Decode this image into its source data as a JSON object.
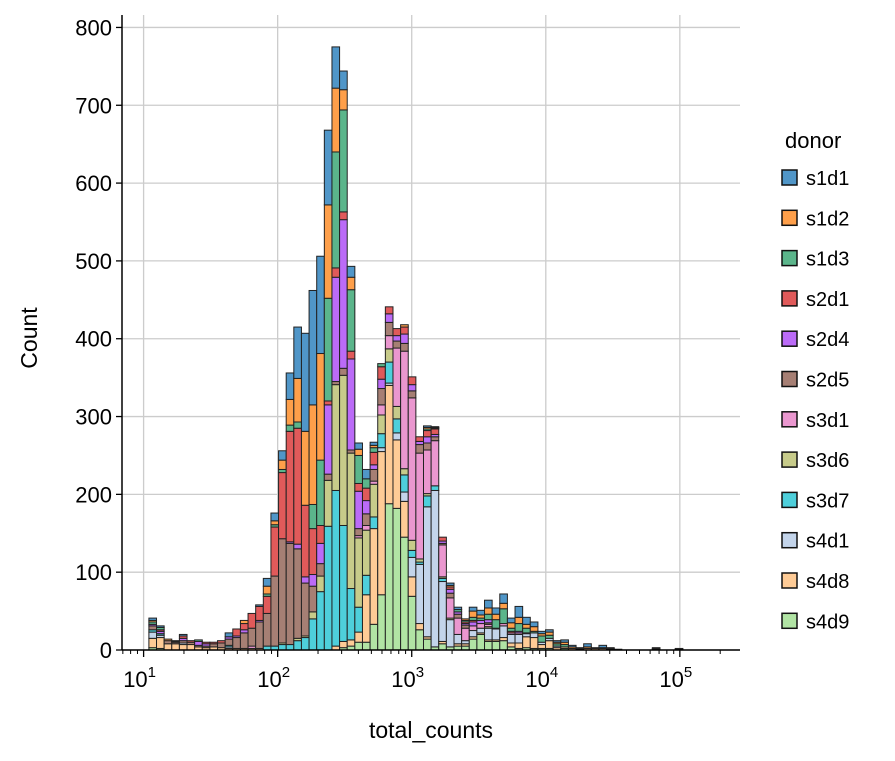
{
  "chart_data": {
    "type": "bar",
    "subtype": "stacked-histogram",
    "xlabel": "total_counts",
    "ylabel": "Count",
    "x_scale": "log",
    "xlim": [
      6.9,
      281000
    ],
    "ylim": [
      0,
      816
    ],
    "grid": true,
    "x_ticks": [
      {
        "base": "10",
        "exp": "1"
      },
      {
        "base": "10",
        "exp": "2"
      },
      {
        "base": "10",
        "exp": "3"
      },
      {
        "base": "10",
        "exp": "4"
      },
      {
        "base": "10",
        "exp": "5"
      }
    ],
    "y_ticks": [
      "0",
      "100",
      "200",
      "300",
      "400",
      "500",
      "600",
      "700",
      "800"
    ],
    "bins": {
      "first_edge": 10.95,
      "log10_width": 0.0569,
      "count": 70
    },
    "legend": {
      "title": "donor",
      "position": "right-outside"
    },
    "series": [
      {
        "name": "s1d1",
        "color": "#5096c8",
        "values": [
          3,
          2,
          0,
          0,
          2,
          0,
          0,
          0,
          0,
          0,
          5,
          0,
          0,
          0,
          2,
          10,
          10,
          12,
          34,
          66,
          126,
          147,
          125,
          96,
          53,
          24,
          14,
          8,
          12,
          4,
          0,
          0,
          0,
          0,
          0,
          0,
          2,
          1,
          0,
          3,
          3,
          0,
          5,
          6,
          10,
          8,
          12,
          6,
          14,
          9,
          6,
          3,
          3,
          2,
          3,
          2,
          1,
          4,
          1,
          3,
          1,
          1,
          0,
          0,
          0,
          0,
          1,
          0,
          0,
          1
        ]
      },
      {
        "name": "s1d2",
        "color": "#fe9f4a",
        "values": [
          2,
          0,
          2,
          0,
          0,
          0,
          0,
          0,
          0,
          0,
          0,
          0,
          4,
          0,
          0,
          10,
          5,
          12,
          33,
          56,
          95,
          128,
          137,
          120,
          82,
          26,
          16,
          8,
          0,
          3,
          0,
          0,
          0,
          3,
          0,
          0,
          2,
          1,
          0,
          2,
          0,
          2,
          8,
          4,
          8,
          7,
          7,
          7,
          8,
          5,
          6,
          3,
          4,
          2,
          3,
          2,
          1,
          2,
          0,
          1,
          0,
          0,
          0,
          0,
          0,
          0,
          1,
          0,
          0,
          0
        ]
      },
      {
        "name": "s1d3",
        "color": "#5bb58b",
        "values": [
          3,
          3,
          0,
          0,
          0,
          0,
          2,
          0,
          0,
          0,
          0,
          0,
          0,
          0,
          0,
          3,
          3,
          4,
          8,
          8,
          0,
          31,
          84,
          132,
          149,
          131,
          79,
          36,
          12,
          6,
          4,
          0,
          0,
          0,
          0,
          0,
          2,
          1,
          0,
          0,
          3,
          2,
          4,
          3,
          7,
          11,
          19,
          4,
          10,
          6,
          2,
          8,
          4,
          3,
          3,
          0,
          0,
          0,
          0,
          0,
          1,
          0,
          0,
          0,
          0,
          0,
          1,
          0,
          0,
          0
        ]
      },
      {
        "name": "s2d1",
        "color": "#e05a5a",
        "values": [
          0,
          2,
          0,
          1,
          3,
          2,
          0,
          2,
          2,
          3,
          0,
          9,
          8,
          19,
          18,
          22,
          63,
          85,
          142,
          149,
          92,
          59,
          23,
          5,
          12,
          10,
          10,
          10,
          16,
          16,
          16,
          9,
          9,
          9,
          10,
          6,
          8,
          7,
          5,
          3,
          0,
          2,
          2,
          0,
          0,
          0,
          0,
          2,
          0,
          0,
          0,
          0,
          0,
          0,
          0,
          0,
          0,
          0,
          0,
          0,
          0,
          0,
          0,
          0,
          0,
          0,
          0,
          0,
          0,
          0
        ]
      },
      {
        "name": "s2d4",
        "color": "#bb6bf7",
        "values": [
          2,
          3,
          0,
          1,
          3,
          0,
          5,
          3,
          0,
          0,
          3,
          2,
          4,
          0,
          2,
          0,
          0,
          0,
          2,
          6,
          8,
          15,
          26,
          89,
          134,
          191,
          117,
          48,
          17,
          6,
          12,
          11,
          7,
          12,
          8,
          4,
          8,
          3,
          3,
          5,
          3,
          2,
          5,
          4,
          4,
          0,
          0,
          0,
          2,
          0,
          0,
          0,
          0,
          0,
          0,
          0,
          0,
          0,
          0,
          0,
          0,
          0,
          0,
          0,
          0,
          0,
          0,
          0,
          0,
          0
        ]
      },
      {
        "name": "s2d5",
        "color": "#a67f74",
        "values": [
          5,
          0,
          4,
          2,
          3,
          3,
          2,
          2,
          4,
          6,
          8,
          14,
          20,
          23,
          34,
          42,
          90,
          134,
          130,
          115,
          68,
          33,
          16,
          8,
          4,
          9,
          4,
          9,
          15,
          15,
          21,
          17,
          9,
          10,
          9,
          11,
          9,
          5,
          2,
          6,
          5,
          4,
          0,
          0,
          2,
          0,
          0,
          0,
          0,
          0,
          0,
          0,
          0,
          0,
          0,
          0,
          0,
          0,
          0,
          0,
          0,
          0,
          0,
          0,
          0,
          0,
          0,
          0,
          0,
          0
        ]
      },
      {
        "name": "s3d1",
        "color": "#ea97cf",
        "values": [
          0,
          0,
          0,
          0,
          0,
          0,
          0,
          0,
          0,
          0,
          0,
          0,
          0,
          3,
          0,
          0,
          0,
          0,
          0,
          0,
          0,
          0,
          0,
          0,
          0,
          0,
          0,
          3,
          6,
          4,
          13,
          17,
          75,
          151,
          183,
          136,
          56,
          58,
          41,
          26,
          21,
          16,
          6,
          6,
          3,
          1,
          3,
          2,
          2,
          0,
          0,
          0,
          0,
          0,
          0,
          0,
          0,
          0,
          0,
          0,
          0,
          0,
          0,
          0,
          0,
          0,
          0,
          0,
          0,
          0
        ]
      },
      {
        "name": "s3d6",
        "color": "#c7cb8a",
        "values": [
          0,
          0,
          0,
          0,
          0,
          0,
          0,
          0,
          0,
          0,
          0,
          0,
          0,
          0,
          0,
          0,
          0,
          2,
          0,
          3,
          2,
          9,
          20,
          59,
          136,
          193,
          174,
          89,
          58,
          42,
          24,
          17,
          16,
          8,
          13,
          4,
          3,
          0,
          2,
          2,
          0,
          0,
          0,
          0,
          2,
          0,
          0,
          0,
          0,
          1,
          0,
          0,
          0,
          0,
          0,
          0,
          0,
          0,
          0,
          0,
          0,
          0,
          0,
          0,
          0,
          0,
          0,
          0,
          0,
          0
        ]
      },
      {
        "name": "s3d7",
        "color": "#4ecfdb",
        "values": [
          3,
          2,
          0,
          0,
          0,
          0,
          0,
          0,
          0,
          0,
          2,
          0,
          0,
          0,
          0,
          5,
          5,
          7,
          7,
          12,
          16,
          40,
          75,
          159,
          200,
          149,
          66,
          32,
          25,
          15,
          18,
          27,
          18,
          22,
          9,
          3,
          14,
          6,
          4,
          0,
          0,
          0,
          0,
          0,
          0,
          0,
          0,
          0,
          0,
          0,
          0,
          0,
          0,
          0,
          0,
          0,
          0,
          0,
          0,
          0,
          0,
          0,
          0,
          0,
          0,
          0,
          0,
          0,
          0,
          0
        ]
      },
      {
        "name": "s4d1",
        "color": "#c3d4ea",
        "values": [
          8,
          3,
          0,
          0,
          2,
          0,
          0,
          0,
          0,
          0,
          2,
          0,
          0,
          0,
          0,
          0,
          0,
          0,
          0,
          0,
          0,
          0,
          0,
          0,
          0,
          0,
          0,
          0,
          0,
          0,
          5,
          3,
          9,
          12,
          25,
          76,
          167,
          201,
          77,
          35,
          12,
          4,
          8,
          6,
          15,
          14,
          15,
          11,
          11,
          4,
          6,
          3,
          3,
          2,
          0,
          0,
          0,
          0,
          0,
          0,
          0,
          0,
          0,
          0,
          0,
          0,
          0,
          0,
          0,
          0
        ]
      },
      {
        "name": "s4d8",
        "color": "#fecb96",
        "values": [
          12,
          14,
          8,
          8,
          7,
          7,
          4,
          3,
          4,
          3,
          2,
          2,
          2,
          2,
          2,
          0,
          0,
          0,
          0,
          0,
          0,
          0,
          0,
          0,
          5,
          8,
          8,
          13,
          61,
          123,
          184,
          152,
          88,
          46,
          25,
          8,
          3,
          0,
          3,
          0,
          3,
          3,
          3,
          2,
          2,
          2,
          4,
          5,
          7,
          14,
          14,
          5,
          10,
          3,
          2,
          2,
          1,
          2,
          2,
          2,
          1,
          0,
          0,
          0,
          0,
          0,
          0,
          0,
          0,
          1
        ]
      },
      {
        "name": "s4d9",
        "color": "#b1e4a4",
        "values": [
          3,
          2,
          0,
          0,
          0,
          0,
          0,
          0,
          0,
          0,
          0,
          0,
          0,
          0,
          0,
          0,
          0,
          0,
          0,
          0,
          0,
          0,
          0,
          0,
          0,
          3,
          5,
          10,
          10,
          33,
          71,
          188,
          182,
          145,
          69,
          26,
          14,
          4,
          8,
          4,
          5,
          5,
          14,
          20,
          11,
          11,
          12,
          4,
          2,
          3,
          2,
          2,
          2,
          0,
          2,
          0,
          0,
          0,
          0,
          0,
          0,
          0,
          0,
          0,
          0,
          0,
          0,
          0,
          0,
          0
        ]
      }
    ]
  }
}
